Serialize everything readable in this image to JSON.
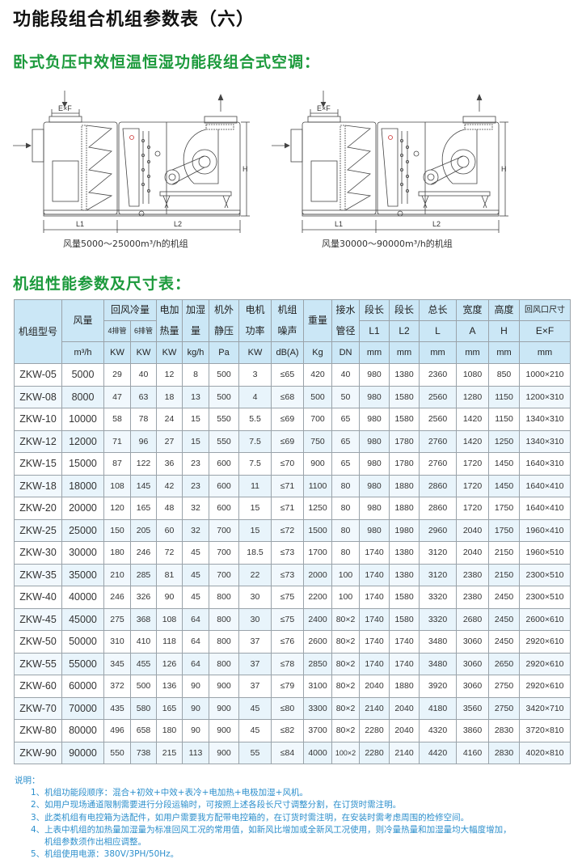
{
  "title": "功能段组合机组参数表（六）",
  "subtitle": "卧式负压中效恒温恒湿功能段组合式空调：",
  "diagrams": [
    {
      "caption": "风量5000～25000m³/h的机组",
      "label_ef": "E×F",
      "label_h": "H",
      "label_l1": "L1",
      "label_l2": "L2"
    },
    {
      "caption": "风量30000～90000m³/h的机组",
      "label_ef": "E×F",
      "label_h": "H",
      "label_l1": "L1",
      "label_l2": "L2"
    }
  ],
  "table_title": "机组性能参数及尺寸表：",
  "table": {
    "header": {
      "model": "机组型号",
      "airflow": "风量",
      "cooling": "回风冷量",
      "cooling_4": "4排管",
      "cooling_6": "6排管",
      "heat_1": "电加",
      "heat_2": "热量",
      "humid_1": "加湿",
      "humid_2": "量",
      "pressure_1": "机外",
      "pressure_2": "静压",
      "motor_1": "电机",
      "motor_2": "功率",
      "noise_1": "机组",
      "noise_2": "噪声",
      "weight": "重量",
      "drain_1": "接水",
      "drain_2": "管径",
      "l1_1": "段长",
      "l1_2": "L1",
      "l2_1": "段长",
      "l2_2": "L2",
      "l_1": "总长",
      "l_2": "L",
      "a_1": "宽度",
      "a_2": "A",
      "h_1": "高度",
      "h_2": "H",
      "ef_1": "回风口尺寸",
      "ef_2": "E×F"
    },
    "units": [
      "m³/h",
      "KW",
      "KW",
      "KW",
      "kg/h",
      "Pa",
      "KW",
      "dB(A)",
      "Kg",
      "DN",
      "mm",
      "mm",
      "mm",
      "mm",
      "mm",
      "mm"
    ],
    "rows": [
      [
        "ZKW-05",
        "5000",
        "29",
        "40",
        "12",
        "8",
        "500",
        "3",
        "≤65",
        "420",
        "40",
        "980",
        "1380",
        "2360",
        "1080",
        "850",
        "1000×210"
      ],
      [
        "ZKW-08",
        "8000",
        "47",
        "63",
        "18",
        "13",
        "500",
        "4",
        "≤68",
        "500",
        "50",
        "980",
        "1580",
        "2560",
        "1280",
        "1150",
        "1200×310"
      ],
      [
        "ZKW-10",
        "10000",
        "58",
        "78",
        "24",
        "15",
        "550",
        "5.5",
        "≤69",
        "700",
        "65",
        "980",
        "1580",
        "2560",
        "1420",
        "1150",
        "1340×310"
      ],
      [
        "ZKW-12",
        "12000",
        "71",
        "96",
        "27",
        "15",
        "550",
        "7.5",
        "≤69",
        "750",
        "65",
        "980",
        "1780",
        "2760",
        "1420",
        "1250",
        "1340×310"
      ],
      [
        "ZKW-15",
        "15000",
        "87",
        "122",
        "36",
        "23",
        "600",
        "7.5",
        "≤70",
        "900",
        "65",
        "980",
        "1780",
        "2760",
        "1720",
        "1450",
        "1640×310"
      ],
      [
        "ZKW-18",
        "18000",
        "108",
        "145",
        "42",
        "23",
        "600",
        "11",
        "≤71",
        "1100",
        "80",
        "980",
        "1880",
        "2860",
        "1720",
        "1450",
        "1640×410"
      ],
      [
        "ZKW-20",
        "20000",
        "120",
        "165",
        "48",
        "32",
        "600",
        "15",
        "≤71",
        "1250",
        "80",
        "980",
        "1880",
        "2860",
        "1720",
        "1750",
        "1640×410"
      ],
      [
        "ZKW-25",
        "25000",
        "150",
        "205",
        "60",
        "32",
        "700",
        "15",
        "≤72",
        "1500",
        "80",
        "980",
        "1980",
        "2960",
        "2040",
        "1750",
        "1960×410"
      ],
      [
        "ZKW-30",
        "30000",
        "180",
        "246",
        "72",
        "45",
        "700",
        "18.5",
        "≤73",
        "1700",
        "80",
        "1740",
        "1380",
        "3120",
        "2040",
        "2150",
        "1960×510"
      ],
      [
        "ZKW-35",
        "35000",
        "210",
        "285",
        "81",
        "45",
        "700",
        "22",
        "≤73",
        "2000",
        "100",
        "1740",
        "1380",
        "3120",
        "2380",
        "2150",
        "2300×510"
      ],
      [
        "ZKW-40",
        "40000",
        "246",
        "326",
        "90",
        "45",
        "800",
        "30",
        "≤75",
        "2200",
        "100",
        "1740",
        "1580",
        "3320",
        "2380",
        "2450",
        "2300×510"
      ],
      [
        "ZKW-45",
        "45000",
        "275",
        "368",
        "108",
        "64",
        "800",
        "30",
        "≤75",
        "2400",
        "80×2",
        "1740",
        "1580",
        "3320",
        "2680",
        "2450",
        "2600×610"
      ],
      [
        "ZKW-50",
        "50000",
        "310",
        "410",
        "118",
        "64",
        "800",
        "37",
        "≤76",
        "2600",
        "80×2",
        "1740",
        "1740",
        "3480",
        "3060",
        "2450",
        "2920×610"
      ],
      [
        "ZKW-55",
        "55000",
        "345",
        "455",
        "126",
        "64",
        "800",
        "37",
        "≤78",
        "2850",
        "80×2",
        "1740",
        "1740",
        "3480",
        "3060",
        "2650",
        "2920×610"
      ],
      [
        "ZKW-60",
        "60000",
        "372",
        "500",
        "136",
        "90",
        "900",
        "37",
        "≤79",
        "3100",
        "80×2",
        "2040",
        "1880",
        "3920",
        "3060",
        "2750",
        "2920×610"
      ],
      [
        "ZKW-70",
        "70000",
        "435",
        "580",
        "165",
        "90",
        "900",
        "45",
        "≤80",
        "3300",
        "80×2",
        "2140",
        "2040",
        "4180",
        "3560",
        "2750",
        "3420×710"
      ],
      [
        "ZKW-80",
        "80000",
        "496",
        "658",
        "180",
        "90",
        "900",
        "45",
        "≤82",
        "3700",
        "80×2",
        "2280",
        "2040",
        "4320",
        "3860",
        "2830",
        "3720×810"
      ],
      [
        "ZKW-90",
        "90000",
        "550",
        "738",
        "215",
        "113",
        "900",
        "55",
        "≤84",
        "4000",
        "100×2",
        "2280",
        "2140",
        "4420",
        "4160",
        "2830",
        "4020×810"
      ]
    ]
  },
  "notes": {
    "heading": "说明：",
    "items": [
      "1、机组功能段顺序：混合+初效+中效+表冷+电加热+电极加湿+风机。",
      "2、如用户现场通道限制需要进行分段运输时，可按照上述各段长尺寸调整分割，在订货时需注明。",
      "3、此类机组有电控箱为选配件，如用户需要我方配带电控箱的，在订货时需注明，在安装时需考虑周围的检修空间。",
      "4、上表中机组的加热量加湿量为标准回风工况的常用值，如新风比增加或全新风工况使用，则冷量热量和加湿量均大幅度增加，",
      "机组参数须作出相应调整。",
      "5、机组使用电源：380V/3PH/50Hz。"
    ]
  },
  "colors": {
    "accent_green": "#1c9a3c",
    "header_blue": "#cbe7f6",
    "notes_blue": "#2c8fcc"
  }
}
